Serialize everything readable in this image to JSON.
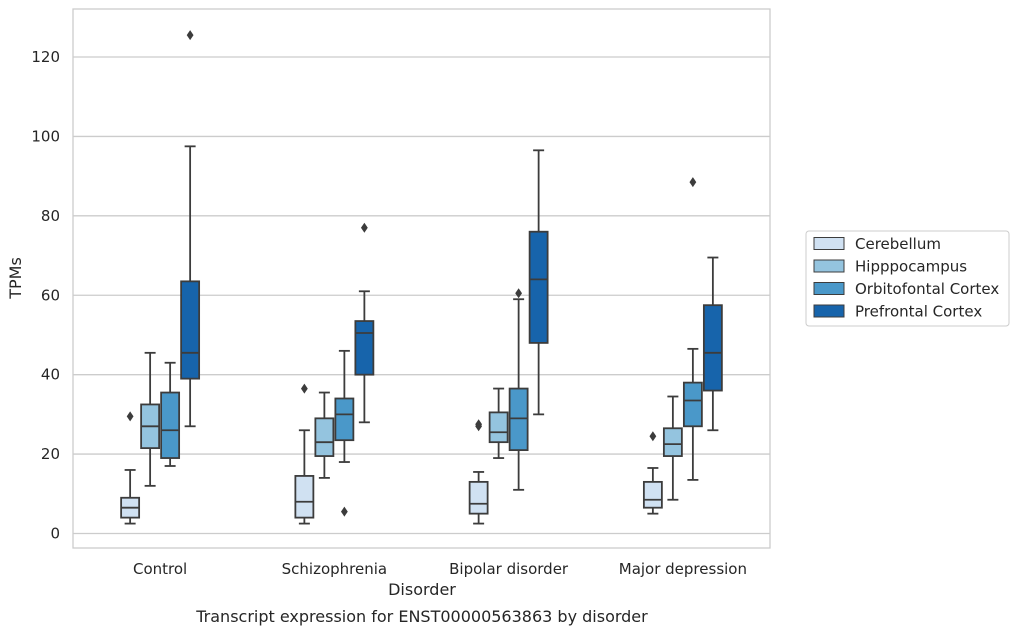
{
  "chart_data": {
    "type": "box",
    "title": "Transcript expression for ENST00000563863 by disorder",
    "xlabel": "Disorder",
    "ylabel": "TPMs",
    "ylim": [
      -3.5,
      132
    ],
    "yticks": [
      0,
      20,
      40,
      60,
      80,
      100,
      120
    ],
    "grid": "horizontal",
    "legend_position": "right",
    "categories": [
      "Control",
      "Schizophrenia",
      "Bipolar disorder",
      "Major depression"
    ],
    "series": [
      {
        "name": "Cerebellum",
        "color": "#d0e1f2",
        "boxes": [
          {
            "whisker_low": 2.5,
            "q1": 4,
            "median": 6.5,
            "q3": 9,
            "whisker_high": 16,
            "outliers": [
              29.5
            ]
          },
          {
            "whisker_low": 2.5,
            "q1": 4,
            "median": 8,
            "q3": 14.5,
            "whisker_high": 26,
            "outliers": [
              36.5
            ]
          },
          {
            "whisker_low": 2.5,
            "q1": 5,
            "median": 7.5,
            "q3": 13,
            "whisker_high": 15.5,
            "outliers": [
              27,
              27.5
            ]
          },
          {
            "whisker_low": 5,
            "q1": 6.5,
            "median": 8.5,
            "q3": 13,
            "whisker_high": 16.5,
            "outliers": [
              24.5
            ]
          }
        ]
      },
      {
        "name": "Hipppocampus",
        "color": "#94c4df",
        "boxes": [
          {
            "whisker_low": 12,
            "q1": 21.5,
            "median": 27,
            "q3": 32.5,
            "whisker_high": 45.5,
            "outliers": []
          },
          {
            "whisker_low": 14,
            "q1": 19.5,
            "median": 23,
            "q3": 29,
            "whisker_high": 35.5,
            "outliers": []
          },
          {
            "whisker_low": 19,
            "q1": 23,
            "median": 25.5,
            "q3": 30.5,
            "whisker_high": 36.5,
            "outliers": []
          },
          {
            "whisker_low": 8.5,
            "q1": 19.5,
            "median": 22.5,
            "q3": 26.5,
            "whisker_high": 34.5,
            "outliers": []
          }
        ]
      },
      {
        "name": "Orbitofontal Cortex",
        "color": "#4a98c9",
        "boxes": [
          {
            "whisker_low": 17,
            "q1": 19,
            "median": 26,
            "q3": 35.5,
            "whisker_high": 43,
            "outliers": []
          },
          {
            "whisker_low": 18,
            "q1": 23.5,
            "median": 30,
            "q3": 34,
            "whisker_high": 46,
            "outliers": [
              5.5
            ]
          },
          {
            "whisker_low": 11,
            "q1": 21,
            "median": 29,
            "q3": 36.5,
            "whisker_high": 59,
            "outliers": [
              60.5
            ]
          },
          {
            "whisker_low": 13.5,
            "q1": 27,
            "median": 33.5,
            "q3": 38,
            "whisker_high": 46.5,
            "outliers": [
              88.5
            ]
          }
        ]
      },
      {
        "name": "Prefrontal Cortex",
        "color": "#1764ab",
        "boxes": [
          {
            "whisker_low": 27,
            "q1": 39,
            "median": 45.5,
            "q3": 63.5,
            "whisker_high": 97.5,
            "outliers": [
              125.5
            ]
          },
          {
            "whisker_low": 28,
            "q1": 40,
            "median": 50.5,
            "q3": 53.5,
            "whisker_high": 61,
            "outliers": [
              77
            ]
          },
          {
            "whisker_low": 30,
            "q1": 48,
            "median": 64,
            "q3": 76,
            "whisker_high": 96.5,
            "outliers": []
          },
          {
            "whisker_low": 26,
            "q1": 36,
            "median": 45.5,
            "q3": 57.5,
            "whisker_high": 69.5,
            "outliers": []
          }
        ]
      }
    ]
  }
}
